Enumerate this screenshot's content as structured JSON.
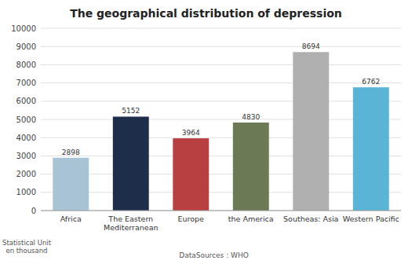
{
  "chart_data": {
    "type": "bar",
    "title": "The geographical distribution of depression",
    "categories": [
      "Africa",
      "The Eastern\nMediterranean",
      "Europe",
      "the America",
      "Southeas: Asia",
      "Western Pacific"
    ],
    "values": [
      2898,
      5152,
      3964,
      4830,
      8694,
      6762
    ],
    "colors": [
      "#a8c4d4",
      "#1e2d4a",
      "#b84040",
      "#6b7a55",
      "#b0b0b0",
      "#5ab4d6"
    ],
    "ylim": [
      0,
      10000
    ],
    "yticks": [
      0,
      1000,
      2000,
      3000,
      4000,
      5000,
      6000,
      7000,
      8000,
      9000,
      10000
    ],
    "grid": true,
    "data_labels": true,
    "annotations": [
      "Statistical Unit\nen thousand",
      "DataSources : WHO"
    ]
  }
}
